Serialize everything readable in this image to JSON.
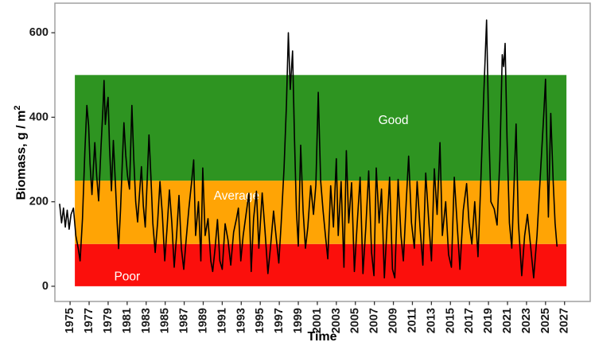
{
  "figure": {
    "y_axis_title_main": "Biomass, g / m",
    "y_axis_title_exponent": "2",
    "x_axis_title": "Time"
  },
  "chart_data": {
    "type": "line",
    "title": "",
    "xlabel": "Time",
    "ylabel": "Biomass, g/m^2",
    "grid": "off",
    "legend": "none",
    "x_domain": [
      1973.4,
      2029.7
    ],
    "y_domain": [
      -36,
      670
    ],
    "x_ticks": [
      1975,
      1977,
      1979,
      1981,
      1983,
      1985,
      1987,
      1989,
      1991,
      1993,
      1995,
      1997,
      1999,
      2001,
      2003,
      2005,
      2007,
      2009,
      2011,
      2013,
      2015,
      2017,
      2019,
      2021,
      2023,
      2025,
      2027
    ],
    "y_ticks": [
      0,
      200,
      400,
      600
    ],
    "axis_color": "#333333",
    "panel_border_color": "#a0a0a0",
    "bands": [
      {
        "label": "Poor",
        "value_from": 0,
        "value_to": 100,
        "x_from": 1975.5,
        "x_to": 2027.2,
        "color": "#fb0f0c",
        "label_year": 1981.0,
        "label_value": 22
      },
      {
        "label": "Average",
        "value_from": 100,
        "value_to": 250,
        "x_from": 1975.5,
        "x_to": 2027.2,
        "color": "#ffa405",
        "label_year": 1992.5,
        "label_value": 213
      },
      {
        "label": "Good",
        "value_from": 250,
        "value_to": 500,
        "x_from": 1975.5,
        "x_to": 2027.2,
        "color": "#2e9421",
        "label_year": 2009.0,
        "label_value": 392
      }
    ],
    "series": [
      {
        "name": "biomass",
        "color": "#000000",
        "points": [
          [
            1973.9,
            194
          ],
          [
            1974.1,
            150
          ],
          [
            1974.3,
            185
          ],
          [
            1974.5,
            140
          ],
          [
            1974.7,
            180
          ],
          [
            1974.9,
            135
          ],
          [
            1975.1,
            170
          ],
          [
            1975.35,
            185
          ],
          [
            1975.6,
            120
          ],
          [
            1975.85,
            90
          ],
          [
            1976.05,
            60
          ],
          [
            1976.3,
            160
          ],
          [
            1976.55,
            320
          ],
          [
            1976.76,
            428
          ],
          [
            1976.95,
            380
          ],
          [
            1977.1,
            290
          ],
          [
            1977.3,
            217
          ],
          [
            1977.45,
            280
          ],
          [
            1977.6,
            340
          ],
          [
            1977.8,
            260
          ],
          [
            1978.0,
            202
          ],
          [
            1978.25,
            330
          ],
          [
            1978.45,
            420
          ],
          [
            1978.57,
            487
          ],
          [
            1978.7,
            383
          ],
          [
            1978.85,
            420
          ],
          [
            1979.0,
            447
          ],
          [
            1979.15,
            330
          ],
          [
            1979.35,
            226
          ],
          [
            1979.55,
            345
          ],
          [
            1979.75,
            250
          ],
          [
            1979.95,
            150
          ],
          [
            1980.1,
            89
          ],
          [
            1980.3,
            180
          ],
          [
            1980.5,
            300
          ],
          [
            1980.66,
            387
          ],
          [
            1980.85,
            310
          ],
          [
            1981.05,
            260
          ],
          [
            1981.25,
            230
          ],
          [
            1981.5,
            428
          ],
          [
            1981.7,
            300
          ],
          [
            1981.9,
            200
          ],
          [
            1982.1,
            152
          ],
          [
            1982.3,
            220
          ],
          [
            1982.5,
            283
          ],
          [
            1982.7,
            190
          ],
          [
            1982.9,
            140
          ],
          [
            1983.1,
            250
          ],
          [
            1983.3,
            358
          ],
          [
            1983.5,
            260
          ],
          [
            1983.7,
            150
          ],
          [
            1983.95,
            80
          ],
          [
            1984.2,
            150
          ],
          [
            1984.45,
            248
          ],
          [
            1984.7,
            170
          ],
          [
            1984.95,
            60
          ],
          [
            1985.2,
            140
          ],
          [
            1985.45,
            228
          ],
          [
            1985.7,
            150
          ],
          [
            1985.95,
            45
          ],
          [
            1986.2,
            120
          ],
          [
            1986.45,
            215
          ],
          [
            1986.7,
            90
          ],
          [
            1986.95,
            40
          ],
          [
            1987.2,
            110
          ],
          [
            1987.5,
            185
          ],
          [
            1987.75,
            240
          ],
          [
            1988.0,
            299
          ],
          [
            1988.2,
            120
          ],
          [
            1988.5,
            200
          ],
          [
            1988.75,
            60
          ],
          [
            1988.95,
            280
          ],
          [
            1989.2,
            120
          ],
          [
            1989.5,
            160
          ],
          [
            1989.8,
            60
          ],
          [
            1990.0,
            35
          ],
          [
            1990.25,
            90
          ],
          [
            1990.5,
            158
          ],
          [
            1990.75,
            60
          ],
          [
            1991.0,
            40
          ],
          [
            1991.3,
            148
          ],
          [
            1991.6,
            110
          ],
          [
            1991.9,
            50
          ],
          [
            1992.2,
            128
          ],
          [
            1992.5,
            160
          ],
          [
            1992.7,
            185
          ],
          [
            1992.95,
            60
          ],
          [
            1993.2,
            120
          ],
          [
            1993.5,
            170
          ],
          [
            1993.8,
            220
          ],
          [
            1994.05,
            35
          ],
          [
            1994.3,
            160
          ],
          [
            1994.6,
            225
          ],
          [
            1994.85,
            90
          ],
          [
            1995.2,
            221
          ],
          [
            1995.5,
            130
          ],
          [
            1995.8,
            30
          ],
          [
            1996.1,
            100
          ],
          [
            1996.4,
            178
          ],
          [
            1996.7,
            110
          ],
          [
            1996.95,
            55
          ],
          [
            1997.2,
            150
          ],
          [
            1997.5,
            280
          ],
          [
            1997.75,
            430
          ],
          [
            1997.95,
            600
          ],
          [
            1998.15,
            466
          ],
          [
            1998.4,
            557
          ],
          [
            1998.6,
            350
          ],
          [
            1998.8,
            180
          ],
          [
            1999.0,
            95
          ],
          [
            1999.25,
            334
          ],
          [
            1999.5,
            180
          ],
          [
            1999.75,
            90
          ],
          [
            2000.0,
            140
          ],
          [
            2000.3,
            238
          ],
          [
            2000.6,
            170
          ],
          [
            2000.85,
            240
          ],
          [
            2001.1,
            459
          ],
          [
            2001.35,
            250
          ],
          [
            2001.6,
            180
          ],
          [
            2001.85,
            120
          ],
          [
            2002.1,
            65
          ],
          [
            2002.4,
            238
          ],
          [
            2002.7,
            140
          ],
          [
            2003.0,
            302
          ],
          [
            2003.2,
            120
          ],
          [
            2003.5,
            248
          ],
          [
            2003.8,
            45
          ],
          [
            2004.05,
            321
          ],
          [
            2004.3,
            150
          ],
          [
            2004.6,
            245
          ],
          [
            2004.9,
            35
          ],
          [
            2005.2,
            150
          ],
          [
            2005.5,
            258
          ],
          [
            2005.8,
            30
          ],
          [
            2006.1,
            140
          ],
          [
            2006.4,
            273
          ],
          [
            2006.7,
            80
          ],
          [
            2006.95,
            25
          ],
          [
            2007.2,
            280
          ],
          [
            2007.5,
            150
          ],
          [
            2007.75,
            230
          ],
          [
            2008.05,
            20
          ],
          [
            2008.35,
            150
          ],
          [
            2008.6,
            258
          ],
          [
            2008.9,
            40
          ],
          [
            2009.15,
            20
          ],
          [
            2009.5,
            253
          ],
          [
            2009.8,
            120
          ],
          [
            2010.05,
            60
          ],
          [
            2010.35,
            200
          ],
          [
            2010.6,
            308
          ],
          [
            2010.9,
            150
          ],
          [
            2011.2,
            90
          ],
          [
            2011.5,
            248
          ],
          [
            2011.8,
            140
          ],
          [
            2012.1,
            50
          ],
          [
            2012.4,
            268
          ],
          [
            2012.7,
            160
          ],
          [
            2013.0,
            60
          ],
          [
            2013.3,
            278
          ],
          [
            2013.6,
            170
          ],
          [
            2013.9,
            340
          ],
          [
            2014.15,
            120
          ],
          [
            2014.5,
            200
          ],
          [
            2014.8,
            75
          ],
          [
            2015.1,
            45
          ],
          [
            2015.4,
            258
          ],
          [
            2015.7,
            150
          ],
          [
            2016.0,
            40
          ],
          [
            2016.35,
            180
          ],
          [
            2016.7,
            243
          ],
          [
            2016.95,
            150
          ],
          [
            2017.25,
            100
          ],
          [
            2017.55,
            200
          ],
          [
            2017.9,
            70
          ],
          [
            2018.2,
            250
          ],
          [
            2018.5,
            450
          ],
          [
            2018.8,
            630
          ],
          [
            2019.0,
            400
          ],
          [
            2019.25,
            200
          ],
          [
            2019.6,
            183
          ],
          [
            2019.9,
            145
          ],
          [
            2020.2,
            300
          ],
          [
            2020.45,
            548
          ],
          [
            2020.6,
            520
          ],
          [
            2020.75,
            575
          ],
          [
            2020.95,
            350
          ],
          [
            2021.2,
            150
          ],
          [
            2021.45,
            90
          ],
          [
            2021.7,
            250
          ],
          [
            2021.9,
            384
          ],
          [
            2022.15,
            150
          ],
          [
            2022.5,
            25
          ],
          [
            2022.8,
            119
          ],
          [
            2023.1,
            170
          ],
          [
            2023.45,
            90
          ],
          [
            2023.75,
            20
          ],
          [
            2024.1,
            120
          ],
          [
            2024.5,
            280
          ],
          [
            2024.8,
            400
          ],
          [
            2025.0,
            490
          ],
          [
            2025.3,
            164
          ],
          [
            2025.55,
            409
          ],
          [
            2025.8,
            250
          ],
          [
            2026.0,
            150
          ],
          [
            2026.2,
            95
          ]
        ]
      }
    ]
  }
}
